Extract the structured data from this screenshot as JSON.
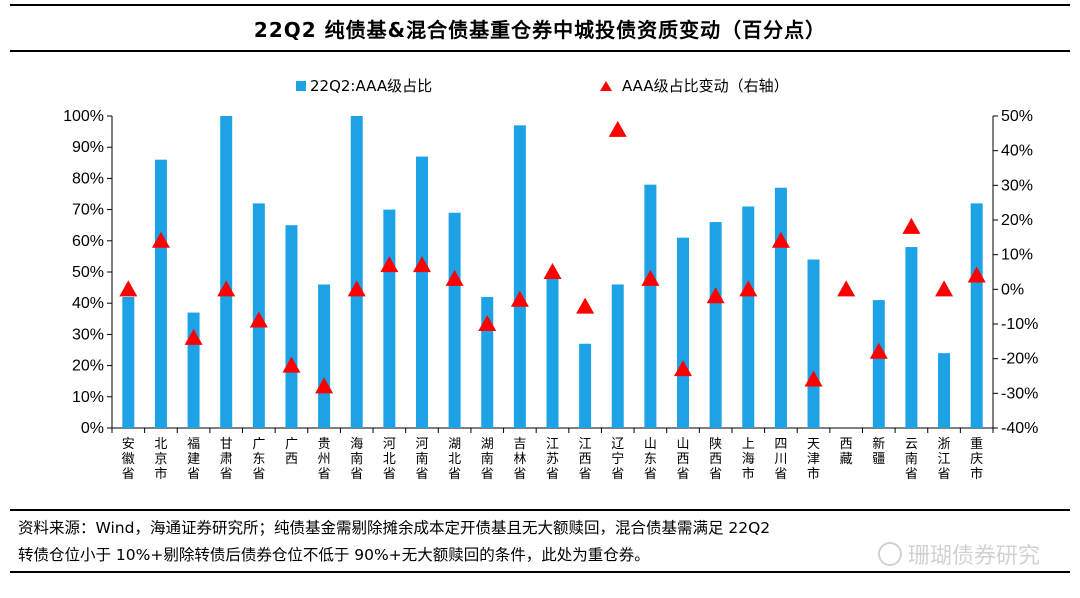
{
  "title": "22Q2 纯债基&混合债基重仓券中城投债资质变动（百分点）",
  "chart_data": {
    "type": "bar+scatter",
    "categories": [
      "安徽省",
      "北京市",
      "福建省",
      "甘肃省",
      "广东省",
      "广西",
      "贵州省",
      "海南省",
      "河北省",
      "河南省",
      "湖北省",
      "湖南省",
      "吉林省",
      "江苏省",
      "江西省",
      "辽宁省",
      "山东省",
      "山西省",
      "陕西省",
      "上海市",
      "四川省",
      "天津市",
      "西藏",
      "新疆",
      "云南省",
      "浙江省",
      "重庆市"
    ],
    "series": [
      {
        "name": "22Q2:AAA级占比",
        "type": "bar",
        "axis": "left",
        "color": "#1EA2E6",
        "values": [
          0.42,
          0.86,
          0.37,
          1.0,
          0.72,
          0.65,
          0.46,
          1.0,
          0.7,
          0.87,
          0.69,
          0.42,
          0.97,
          0.49,
          0.27,
          0.46,
          0.78,
          0.61,
          0.66,
          0.71,
          0.77,
          0.54,
          null,
          0.41,
          0.58,
          0.24,
          0.72
        ]
      },
      {
        "name": "AAA级占比变动（右轴）",
        "type": "scatter",
        "marker": "triangle",
        "axis": "right",
        "color": "#FF0000",
        "values": [
          0.0,
          0.14,
          -0.14,
          0.0,
          -0.09,
          -0.22,
          -0.28,
          0.0,
          0.07,
          0.07,
          0.03,
          -0.1,
          -0.03,
          0.05,
          -0.05,
          0.46,
          0.03,
          -0.23,
          -0.02,
          0.0,
          0.14,
          -0.26,
          0.0,
          -0.18,
          0.18,
          0.0,
          0.04
        ]
      }
    ],
    "left_axis": {
      "min": 0,
      "max": 1,
      "ticks": [
        "0%",
        "10%",
        "20%",
        "30%",
        "40%",
        "50%",
        "60%",
        "70%",
        "80%",
        "90%",
        "100%"
      ]
    },
    "right_axis": {
      "min": -0.4,
      "max": 0.5,
      "ticks": [
        "-40%",
        "-30%",
        "-20%",
        "-10%",
        "0%",
        "10%",
        "20%",
        "30%",
        "40%",
        "50%"
      ]
    },
    "legend": {
      "position": "top",
      "bar_label": "22Q2:AAA级占比",
      "marker_label": "AAA级占比变动（右轴）"
    }
  },
  "source": {
    "line1": "资料来源：Wind，海通证券研究所；纯债基金需剔除摊余成本定开债基且无大额赎回，混合债基需满足 22Q2",
    "line2": "转债仓位小于 10%+剔除转债后债券仓位不低于 90%+无大额赎回的条件，此处为重仓券。"
  },
  "watermark": "珊瑚债券研究"
}
